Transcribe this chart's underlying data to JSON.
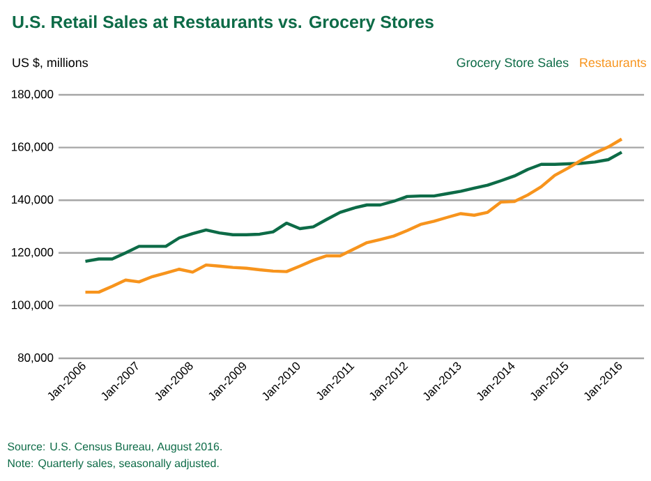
{
  "chart_data": {
    "type": "line",
    "title": "U.S. Retail Sales at Restaurants vs. Grocery Stores",
    "ylabel": "US $, millions",
    "x": [
      "2006-01",
      "2006-04",
      "2006-07",
      "2006-10",
      "2007-01",
      "2007-04",
      "2007-07",
      "2007-10",
      "2008-01",
      "2008-04",
      "2008-07",
      "2008-10",
      "2009-01",
      "2009-04",
      "2009-07",
      "2009-10",
      "2010-01",
      "2010-04",
      "2010-07",
      "2010-10",
      "2011-01",
      "2011-04",
      "2011-07",
      "2011-10",
      "2012-01",
      "2012-04",
      "2012-07",
      "2012-10",
      "2013-01",
      "2013-04",
      "2013-07",
      "2013-10",
      "2014-01",
      "2014-04",
      "2014-07",
      "2014-10",
      "2015-01",
      "2015-04",
      "2015-07",
      "2015-10",
      "2016-01"
    ],
    "series": [
      {
        "name": "Grocery Store Sales",
        "color": "#0d6b47",
        "values": [
          116800,
          117700,
          117700,
          120000,
          122500,
          122500,
          122500,
          125700,
          127300,
          128700,
          127600,
          126900,
          126900,
          127100,
          128000,
          131300,
          129200,
          129900,
          132700,
          135400,
          137000,
          138200,
          138200,
          139600,
          141400,
          141600,
          141600,
          142500,
          143400,
          144600,
          145700,
          147400,
          149200,
          151700,
          153600,
          153600,
          153800,
          154000,
          154500,
          155400,
          158200
        ]
      },
      {
        "name": "Restaurants",
        "color": "#f7941d",
        "values": [
          105100,
          105100,
          107300,
          109700,
          109000,
          111000,
          112400,
          113800,
          112700,
          115400,
          115000,
          114500,
          114200,
          113600,
          113100,
          112900,
          115000,
          117200,
          118900,
          118900,
          121400,
          123900,
          125100,
          126400,
          128500,
          130800,
          132000,
          133500,
          134900,
          134300,
          135400,
          139300,
          139500,
          142000,
          145100,
          149400,
          152200,
          155200,
          157900,
          160200,
          163200
        ]
      }
    ],
    "xlim": [
      "2005-07",
      "2016-06"
    ],
    "xticks": [
      {
        "value": "2006-01",
        "label": "Jan-2006"
      },
      {
        "value": "2007-01",
        "label": "Jan-2007"
      },
      {
        "value": "2008-01",
        "label": "Jan-2008"
      },
      {
        "value": "2009-01",
        "label": "Jan-2009"
      },
      {
        "value": "2010-01",
        "label": "Jan-2010"
      },
      {
        "value": "2011-01",
        "label": "Jan-2011"
      },
      {
        "value": "2012-01",
        "label": "Jan-2012"
      },
      {
        "value": "2013-01",
        "label": "Jan-2013"
      },
      {
        "value": "2014-01",
        "label": "Jan-2014"
      },
      {
        "value": "2015-01",
        "label": "Jan-2015"
      },
      {
        "value": "2016-01",
        "label": "Jan-2016"
      }
    ],
    "ylim": [
      80000,
      180000
    ],
    "yticks": [
      {
        "value": 80000,
        "label": "80,000"
      },
      {
        "value": 100000,
        "label": "100,000"
      },
      {
        "value": 120000,
        "label": "120,000"
      },
      {
        "value": 140000,
        "label": "140,000"
      },
      {
        "value": 160000,
        "label": "160,000"
      },
      {
        "value": 180000,
        "label": "180,000"
      }
    ],
    "grid": "y",
    "legend": "top right",
    "line_style": "solid",
    "marker": "none",
    "annotations": [
      "Source: U.S. Census Bureau, August 2016.",
      "Note: Quarterly sales, seasonally adjusted."
    ]
  }
}
